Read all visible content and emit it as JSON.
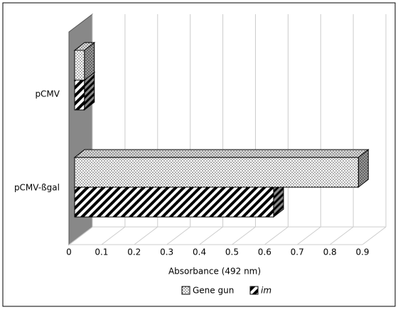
{
  "chart_data": {
    "type": "bar3d-horizontal",
    "categories": [
      "pCMV",
      "pCMV-ßgal"
    ],
    "series": [
      {
        "name": "Gene gun",
        "pattern": "dots",
        "values": [
          0.03,
          0.87
        ]
      },
      {
        "name": "im",
        "pattern": "stripes",
        "values": [
          0.03,
          0.61
        ]
      }
    ],
    "xlabel": "Absorbance (492 nm)",
    "xlim": [
      0,
      0.9
    ],
    "xticks": [
      0,
      0.1,
      0.2,
      0.3,
      0.4,
      0.5,
      0.6,
      0.7,
      0.8,
      0.9
    ],
    "grid": true,
    "legend": "bottom"
  }
}
